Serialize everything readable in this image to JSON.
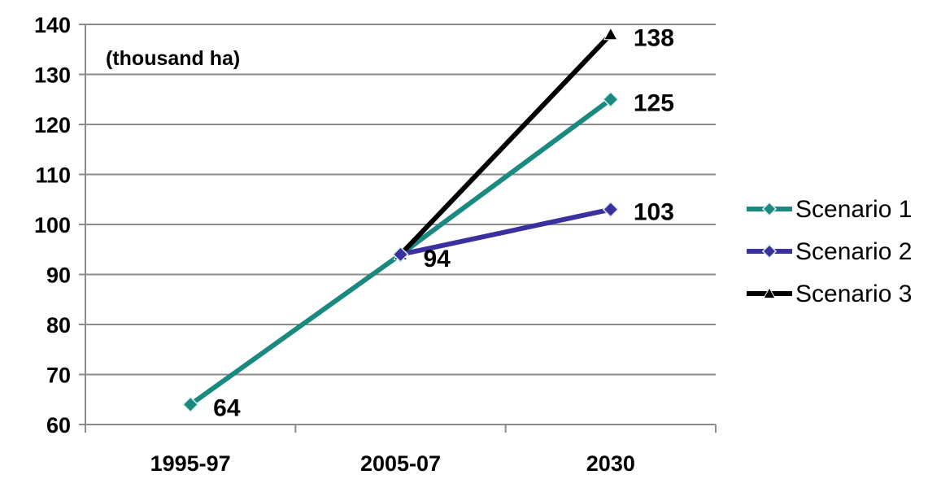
{
  "chart_data": {
    "type": "line",
    "unit_label": "(thousand ha)",
    "categories": [
      "1995-97",
      "2005-07",
      "2030"
    ],
    "ylim": [
      60,
      140
    ],
    "yticks": [
      60,
      70,
      80,
      90,
      100,
      110,
      120,
      130,
      140
    ],
    "grid": true,
    "legend_position": "right",
    "series": [
      {
        "name": "Scenario 1",
        "values": [
          64,
          94,
          125
        ],
        "color": "#1a8a80",
        "marker": "diamond"
      },
      {
        "name": "Scenario 2",
        "values": [
          null,
          94,
          103
        ],
        "color": "#3b30a0",
        "marker": "diamond"
      },
      {
        "name": "Scenario 3",
        "values": [
          null,
          94,
          138
        ],
        "color": "#000000",
        "marker": "triangle"
      }
    ],
    "data_labels": [
      {
        "category": "1995-97",
        "text": "64"
      },
      {
        "category": "2005-07",
        "text": "94"
      },
      {
        "category": "2030",
        "text": "125"
      },
      {
        "category": "2030",
        "text": "103"
      },
      {
        "category": "2030",
        "text": "138"
      }
    ]
  }
}
